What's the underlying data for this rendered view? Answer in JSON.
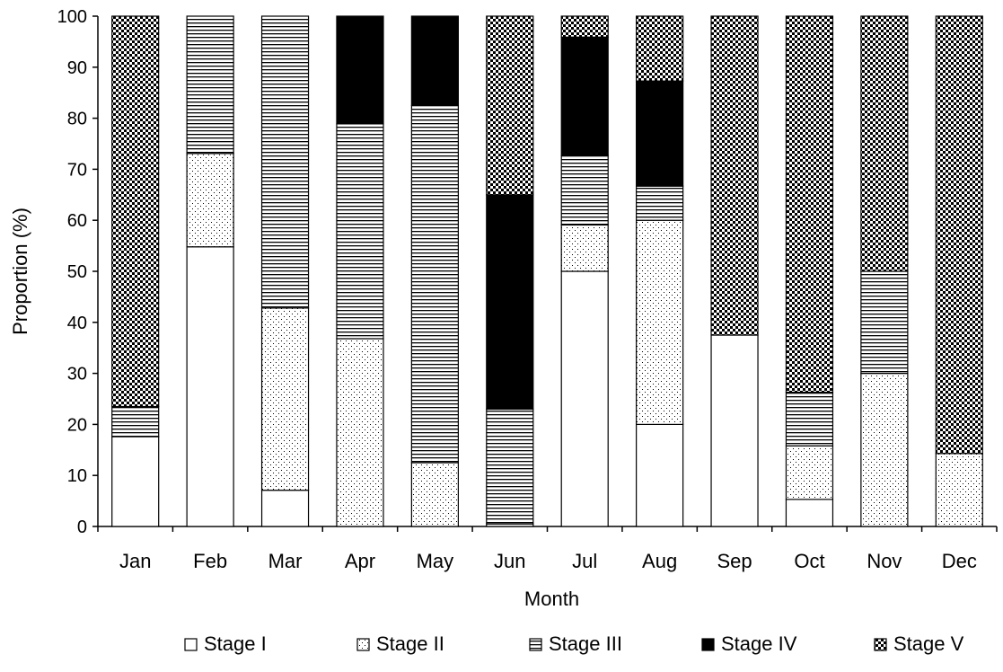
{
  "chart_data": {
    "type": "bar",
    "stacked": true,
    "title": "",
    "xlabel": "Month",
    "ylabel": "Proportion (%)",
    "ylim": [
      0,
      100
    ],
    "yticks": [
      0,
      10,
      20,
      30,
      40,
      50,
      60,
      70,
      80,
      90,
      100
    ],
    "grid": false,
    "legend_position": "bottom",
    "categories": [
      "Jan",
      "Feb",
      "Mar",
      "Apr",
      "May",
      "Jun",
      "Jul",
      "Aug",
      "Sep",
      "Oct",
      "Nov",
      "Dec"
    ],
    "series": [
      {
        "name": "Stage I",
        "pattern": "white",
        "values": [
          17.6,
          54.8,
          7.1,
          0,
          0,
          0.5,
          50.0,
          20.0,
          37.5,
          5.3,
          0,
          0
        ]
      },
      {
        "name": "Stage II",
        "pattern": "dots",
        "values": [
          0,
          18.3,
          35.7,
          36.8,
          12.5,
          0,
          9.1,
          40.0,
          0,
          10.5,
          30.0,
          14.3
        ]
      },
      {
        "name": "Stage III",
        "pattern": "horizontal",
        "values": [
          5.9,
          26.9,
          57.2,
          42.1,
          70.0,
          22.5,
          13.6,
          6.7,
          0,
          10.5,
          20.0,
          0
        ]
      },
      {
        "name": "Stage IV",
        "pattern": "black",
        "values": [
          0,
          0,
          0,
          21.1,
          17.5,
          42.0,
          23.2,
          20.6,
          0,
          0,
          0,
          0
        ]
      },
      {
        "name": "Stage V",
        "pattern": "checker",
        "values": [
          76.5,
          0,
          0,
          0,
          0,
          35.0,
          4.1,
          12.7,
          62.5,
          73.7,
          50.0,
          85.7
        ]
      }
    ]
  }
}
